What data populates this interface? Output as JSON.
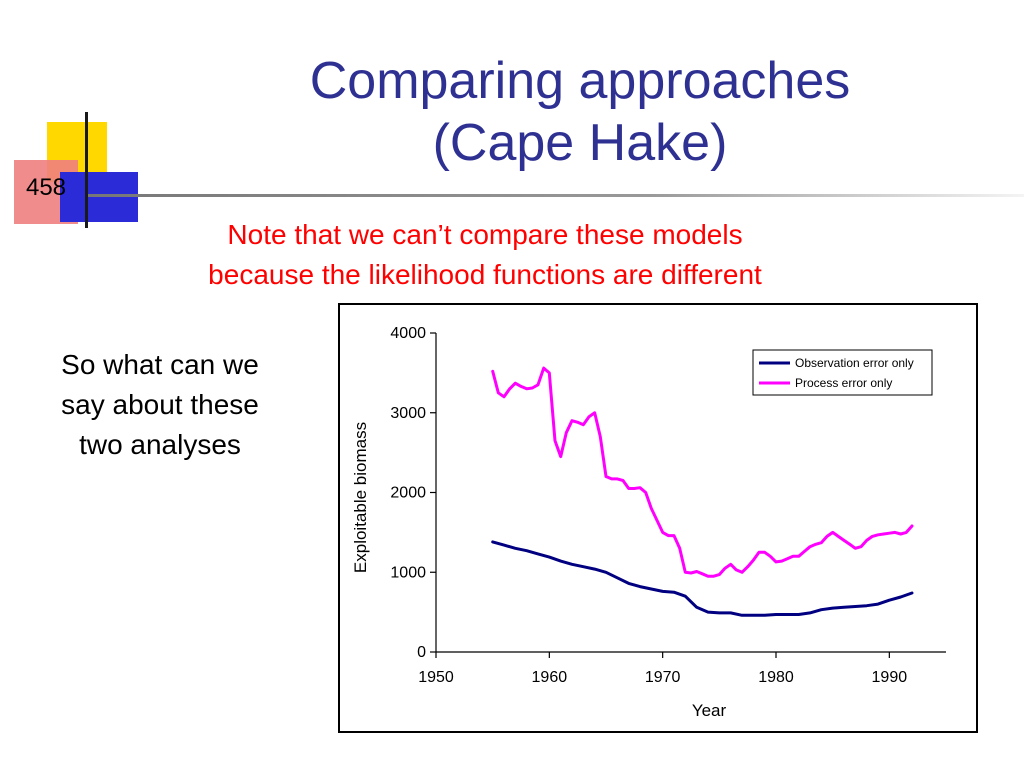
{
  "slide": {
    "number": "458",
    "title_line1": "Comparing approaches",
    "title_line2": "(Cape Hake)",
    "subtitle_line1": "Note that we can’t compare these models",
    "subtitle_line2": "because the likelihood functions are different",
    "body_line1": "So what can we",
    "body_line2": "say about these",
    "body_line3": "two analyses"
  },
  "colors": {
    "title": "#2e3192",
    "subtitle": "#ff0000",
    "observation_series": "#000080",
    "process_series": "#ff00ff"
  },
  "chart_data": {
    "type": "line",
    "xlabel": "Year",
    "ylabel": "Exploitable biomass",
    "xlim": [
      1950,
      1995
    ],
    "ylim": [
      0,
      4000
    ],
    "x_ticks": [
      1950,
      1960,
      1970,
      1980,
      1990
    ],
    "y_ticks": [
      0,
      1000,
      2000,
      3000,
      4000
    ],
    "grid": false,
    "legend_position": "top-right",
    "series": [
      {
        "name": "Observation error only",
        "color": "#000080",
        "x": [
          1955,
          1956,
          1957,
          1958,
          1959,
          1960,
          1961,
          1962,
          1963,
          1964,
          1965,
          1966,
          1967,
          1968,
          1969,
          1970,
          1971,
          1972,
          1973,
          1974,
          1975,
          1976,
          1977,
          1978,
          1979,
          1980,
          1981,
          1982,
          1983,
          1984,
          1985,
          1986,
          1987,
          1988,
          1989,
          1990,
          1991,
          1992
        ],
        "values": [
          1380,
          1340,
          1300,
          1270,
          1230,
          1190,
          1140,
          1100,
          1070,
          1040,
          1000,
          930,
          860,
          820,
          790,
          760,
          750,
          700,
          560,
          500,
          490,
          490,
          460,
          460,
          460,
          470,
          470,
          470,
          490,
          530,
          550,
          560,
          570,
          580,
          600,
          650,
          690,
          740
        ]
      },
      {
        "name": "Process error only",
        "color": "#ff00ff",
        "x": [
          1955,
          1955.5,
          1956,
          1956.5,
          1957,
          1957.5,
          1958,
          1958.5,
          1959,
          1959.5,
          1960,
          1960.5,
          1961,
          1961.5,
          1962,
          1962.5,
          1963,
          1963.5,
          1964,
          1964.5,
          1965,
          1965.5,
          1966,
          1966.5,
          1967,
          1967.5,
          1968,
          1968.5,
          1969,
          1969.5,
          1970,
          1970.5,
          1971,
          1971.5,
          1972,
          1972.5,
          1973,
          1973.5,
          1974,
          1974.5,
          1975,
          1975.5,
          1976,
          1976.5,
          1977,
          1977.5,
          1978,
          1978.5,
          1979,
          1979.5,
          1980,
          1980.5,
          1981,
          1981.5,
          1982,
          1982.5,
          1983,
          1983.5,
          1984,
          1984.5,
          1985,
          1985.5,
          1986,
          1986.5,
          1987,
          1987.5,
          1988,
          1988.5,
          1989,
          1989.5,
          1990,
          1990.5,
          1991,
          1991.5,
          1992
        ],
        "values": [
          3520,
          3250,
          3200,
          3300,
          3370,
          3330,
          3300,
          3310,
          3350,
          3560,
          3500,
          2650,
          2450,
          2750,
          2900,
          2880,
          2850,
          2950,
          3000,
          2700,
          2200,
          2170,
          2170,
          2150,
          2050,
          2050,
          2060,
          2000,
          1800,
          1650,
          1500,
          1460,
          1460,
          1300,
          1000,
          990,
          1010,
          980,
          950,
          950,
          970,
          1050,
          1100,
          1030,
          1000,
          1070,
          1150,
          1250,
          1250,
          1200,
          1130,
          1140,
          1170,
          1200,
          1200,
          1260,
          1320,
          1350,
          1370,
          1450,
          1500,
          1450,
          1400,
          1350,
          1300,
          1320,
          1400,
          1450,
          1470,
          1480,
          1490,
          1500,
          1480,
          1500,
          1580
        ]
      }
    ]
  }
}
